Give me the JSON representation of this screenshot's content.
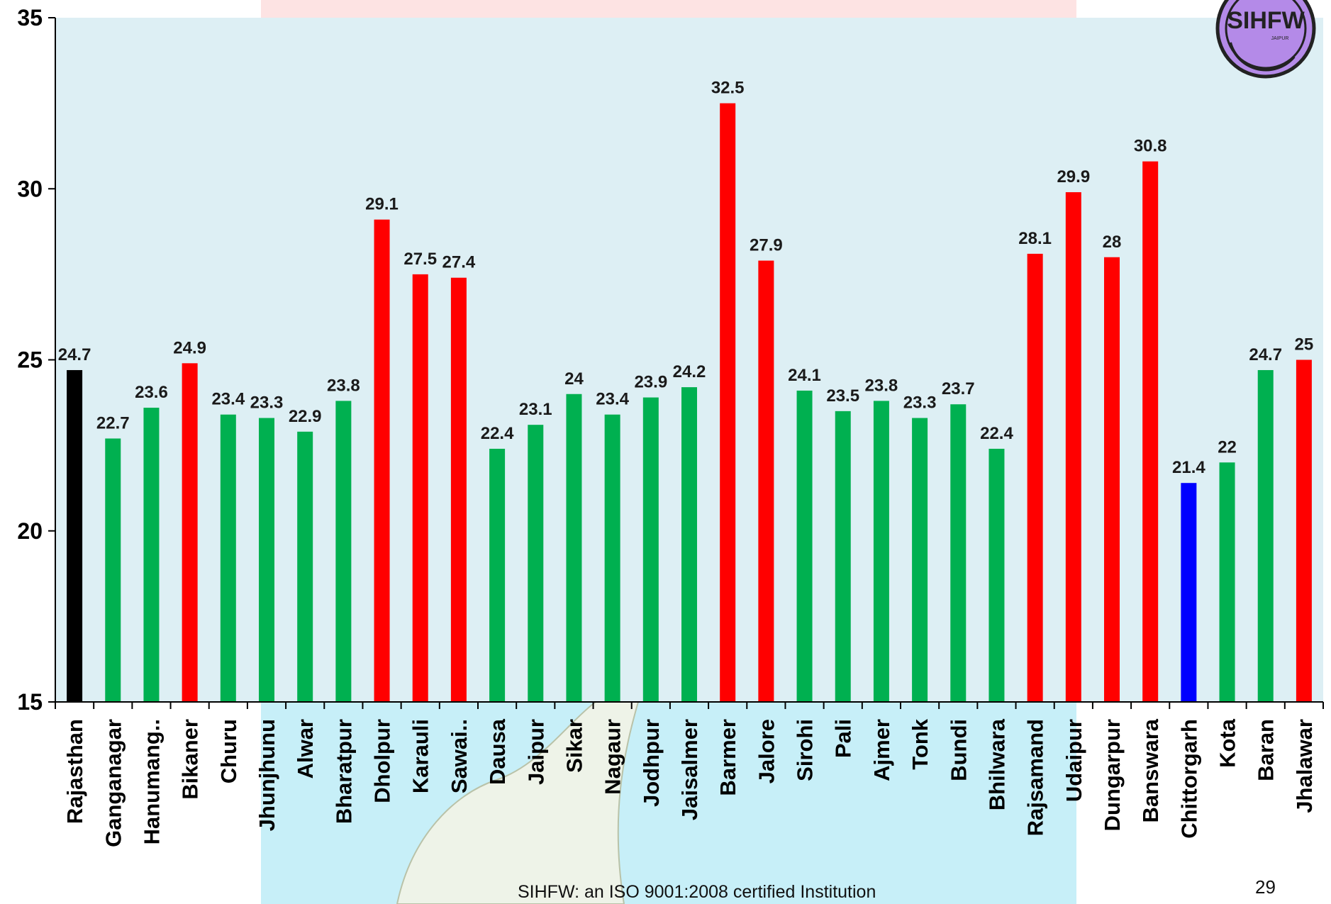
{
  "chart_data": {
    "type": "bar",
    "title": "",
    "xlabel": "",
    "ylabel": "",
    "ylim": [
      15,
      35
    ],
    "yticks": [
      15,
      20,
      25,
      30,
      35
    ],
    "grid": false,
    "categories": [
      "Rajasthan",
      "Ganganagar",
      "Hanumang..",
      "Bikaner",
      "Churu",
      "Jhunjhunu",
      "Alwar",
      "Bharatpur",
      "Dholpur",
      "Karauli",
      "Sawai..",
      "Dausa",
      "Jaipur",
      "Sikar",
      "Nagaur",
      "Jodhpur",
      "Jaisalmer",
      "Barmer",
      "Jalore",
      "Sirohi",
      "Pali",
      "Ajmer",
      "Tonk",
      "Bundi",
      "Bhilwara",
      "Rajsamand",
      "Udaipur",
      "Dungarpur",
      "Banswara",
      "Chittorgarh",
      "Kota",
      "Baran",
      "Jhalawar"
    ],
    "values": [
      24.7,
      22.7,
      23.6,
      24.9,
      23.4,
      23.3,
      22.9,
      23.8,
      29.1,
      27.5,
      27.4,
      22.4,
      23.1,
      24,
      23.4,
      23.9,
      24.2,
      32.5,
      27.9,
      24.1,
      23.5,
      23.8,
      23.3,
      23.7,
      22.4,
      28.1,
      29.9,
      28,
      30.8,
      21.4,
      22,
      24.7,
      25
    ],
    "value_labels": [
      "24.7",
      "22.7",
      "23.6",
      "24.9",
      "23.4",
      "23.3",
      "22.9",
      "23.8",
      "29.1",
      "27.5",
      "27.4",
      "22.4",
      "23.1",
      "24",
      "23.4",
      "23.9",
      "24.2",
      "32.5",
      "27.9",
      "24.1",
      "23.5",
      "23.8",
      "23.3",
      "23.7",
      "22.4",
      "28.1",
      "29.9",
      "28",
      "30.8",
      "21.4",
      "22",
      "24.7",
      "25"
    ],
    "colors": [
      "#000000",
      "#00b050",
      "#00b050",
      "#ff0000",
      "#00b050",
      "#00b050",
      "#00b050",
      "#00b050",
      "#ff0000",
      "#ff0000",
      "#ff0000",
      "#00b050",
      "#00b050",
      "#00b050",
      "#00b050",
      "#00b050",
      "#00b050",
      "#ff0000",
      "#ff0000",
      "#00b050",
      "#00b050",
      "#00b050",
      "#00b050",
      "#00b050",
      "#00b050",
      "#ff0000",
      "#ff0000",
      "#ff0000",
      "#ff0000",
      "#0000ff",
      "#00b050",
      "#00b050",
      "#ff0000"
    ],
    "plot_background": "#daeef3"
  },
  "footer": {
    "text": "SIHFW: an ISO 9001:2008 certified Institution",
    "page_number": "29"
  },
  "logo": {
    "text": "SIHFW",
    "subtext": "JAIPUR",
    "color": "#b48ae8"
  }
}
